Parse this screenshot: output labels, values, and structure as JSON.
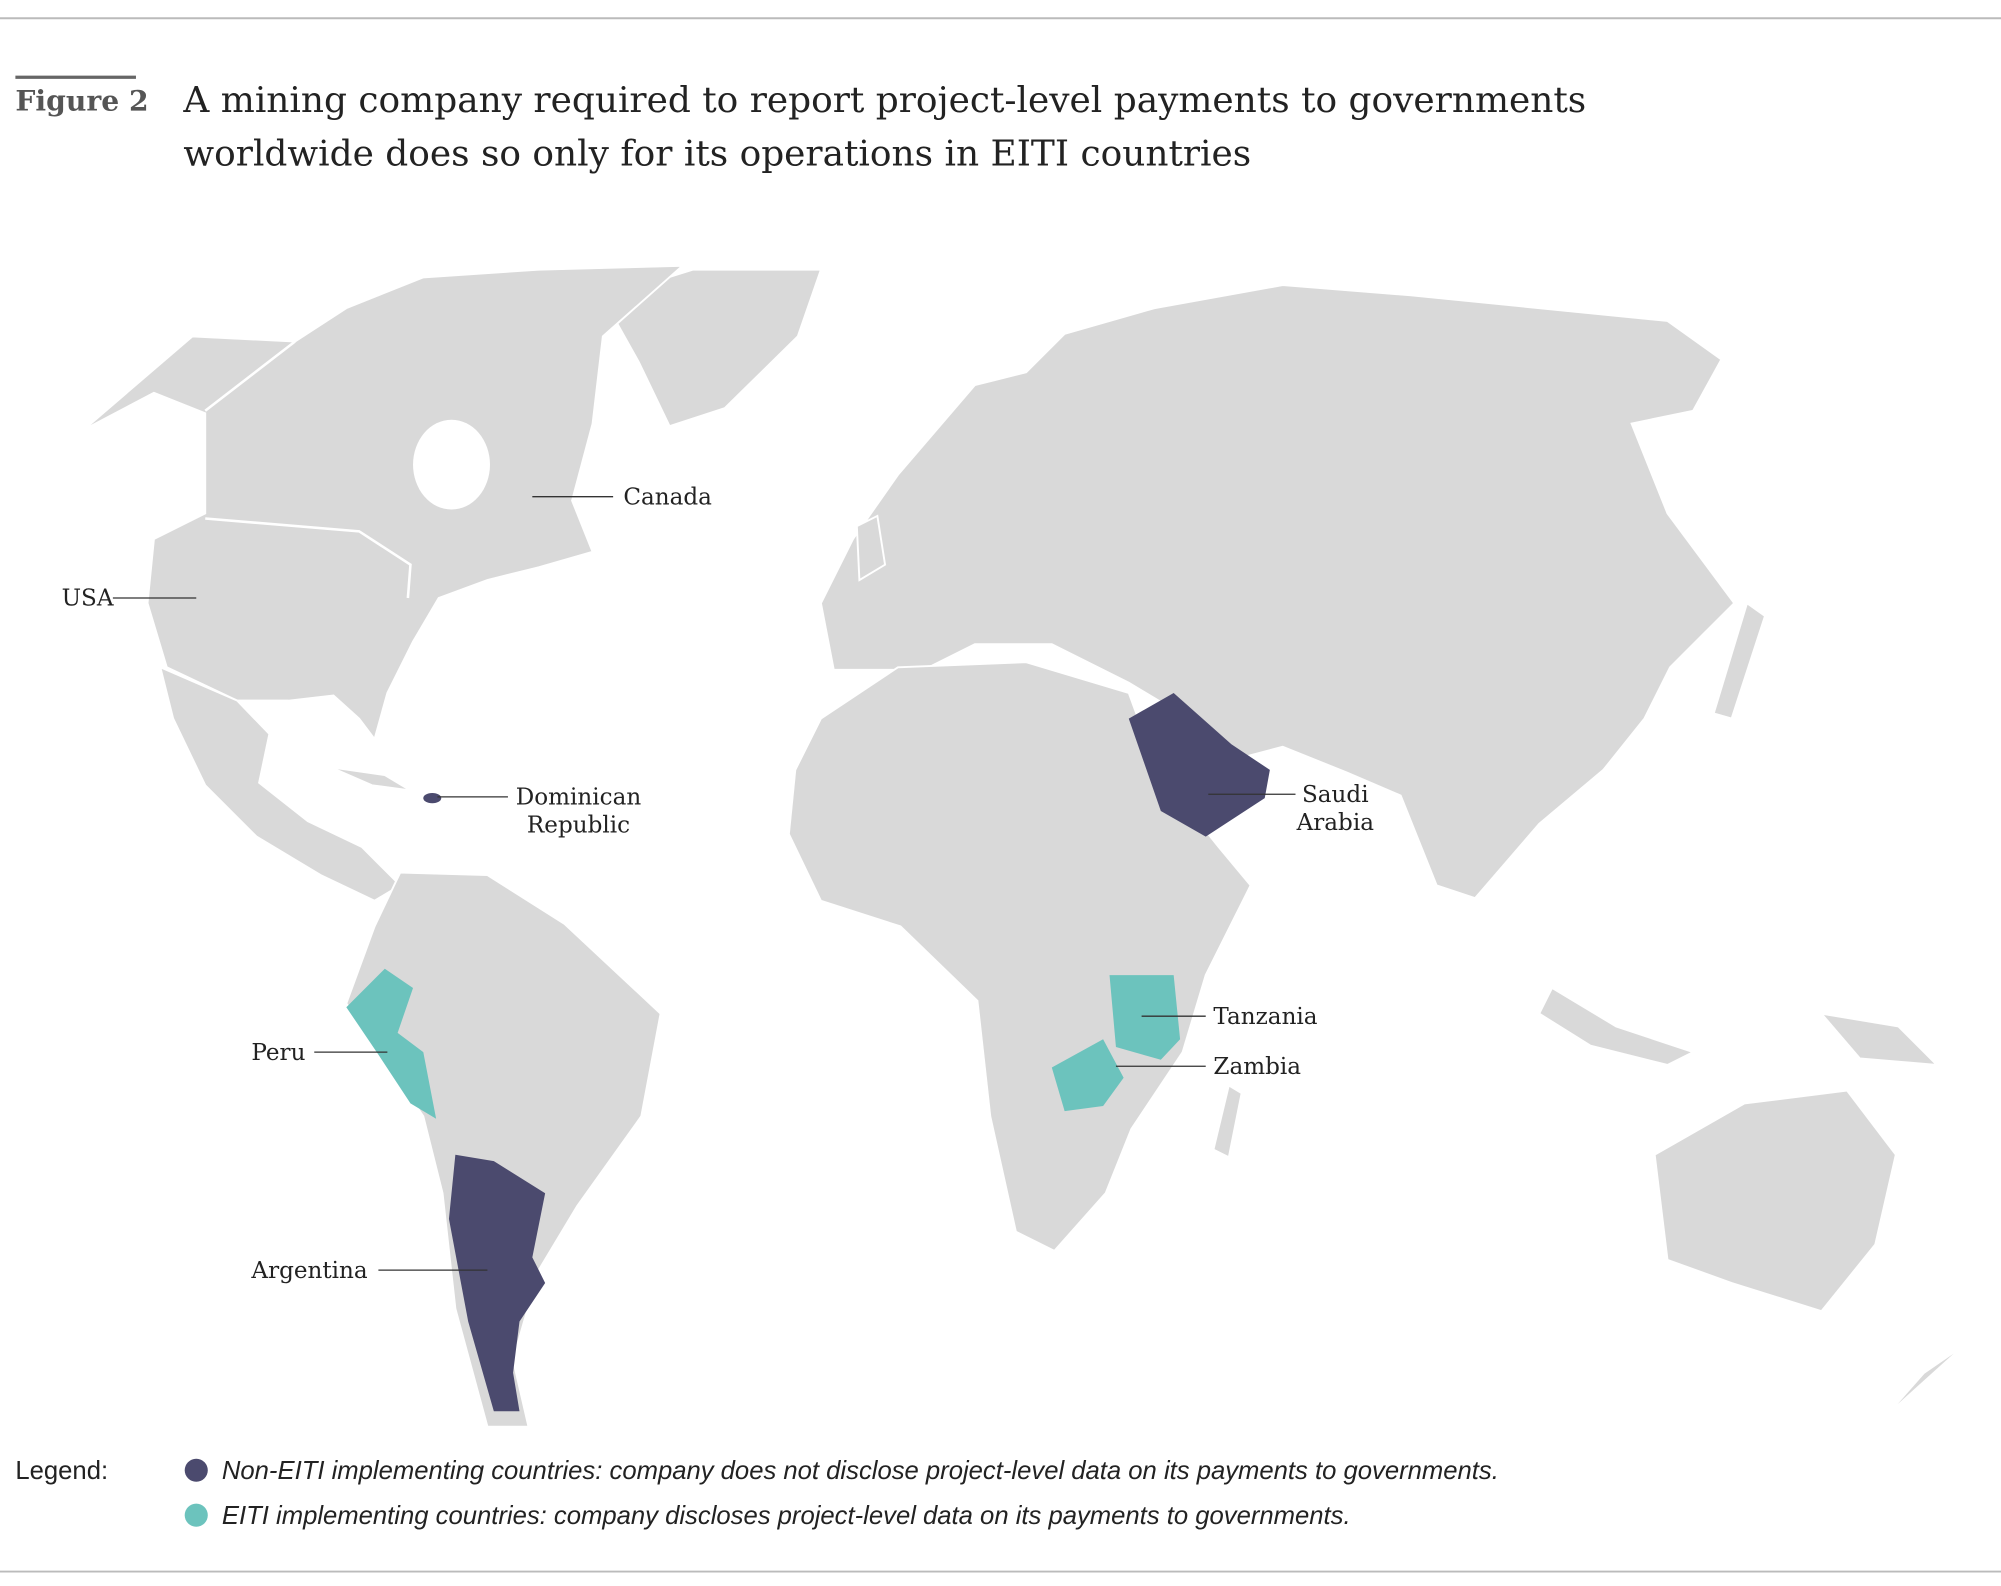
{
  "header": {
    "figure_label": "Figure 2",
    "title_lines": [
      "A mining company required to report project-level payments to governments",
      "worldwide does so only for its operations in EITI countries"
    ]
  },
  "map": {
    "labels": [
      {
        "lines": [
          "Canada"
        ]
      },
      {
        "lines": [
          "USA"
        ]
      },
      {
        "lines": [
          "Dominican",
          "Republic"
        ]
      },
      {
        "lines": [
          "Peru"
        ]
      },
      {
        "lines": [
          "Argentina"
        ]
      },
      {
        "lines": [
          "Saudi",
          "Arabia"
        ]
      },
      {
        "lines": [
          "Tanzania"
        ]
      },
      {
        "lines": [
          "Zambia"
        ]
      }
    ]
  },
  "legend": {
    "title": "Legend:",
    "items": [
      {
        "text": "Non-EITI implementing countries: company does not disclose project-level data on its payments to governments.",
        "color": "#4b4a6e"
      },
      {
        "text": "EITI implementing countries: company discloses project-level data on its payments to governments.",
        "color": "#6cc3bd"
      }
    ]
  }
}
